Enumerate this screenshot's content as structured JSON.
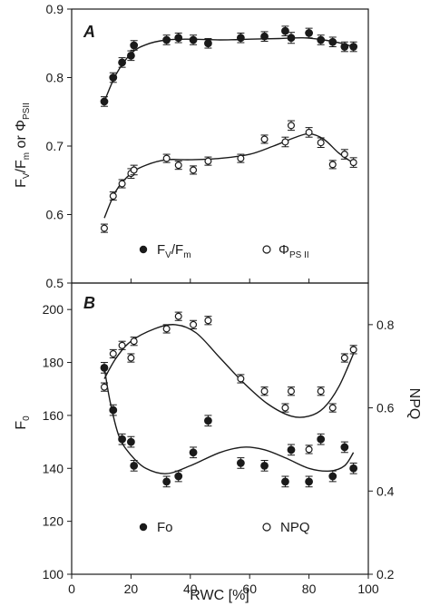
{
  "chart_data": [
    {
      "panel": "A",
      "type": "scatter",
      "xlim": [
        0,
        100
      ],
      "ylim": [
        0.5,
        0.9
      ],
      "x_ticks": [
        "0",
        "20",
        "40",
        "60",
        "80",
        "100"
      ],
      "y_ticks": [
        "0.5",
        "0.6",
        "0.7",
        "0.8",
        "0.9"
      ],
      "y_tick_values": [
        0.5,
        0.6,
        0.7,
        0.8,
        0.9
      ],
      "ylabel": "FV/Fm or ΦPSII",
      "legend_position": "bottom",
      "series": [
        {
          "name": "FV/Fm",
          "marker": "filled-circle",
          "x": [
            11,
            14,
            17,
            20,
            21,
            32,
            36,
            41,
            46,
            57,
            65,
            72,
            74,
            80,
            84,
            88,
            92,
            95
          ],
          "y": [
            0.765,
            0.8,
            0.822,
            0.832,
            0.847,
            0.855,
            0.858,
            0.855,
            0.85,
            0.858,
            0.86,
            0.868,
            0.858,
            0.865,
            0.855,
            0.852,
            0.845,
            0.845
          ],
          "err": [
            0.007,
            0.007,
            0.007,
            0.007,
            0.007,
            0.007,
            0.007,
            0.007,
            0.007,
            0.007,
            0.007,
            0.007,
            0.008,
            0.007,
            0.007,
            0.007,
            0.007,
            0.007
          ],
          "fit": [
            [
              11,
              0.765
            ],
            [
              15,
              0.805
            ],
            [
              20,
              0.835
            ],
            [
              25,
              0.848
            ],
            [
              32,
              0.855
            ],
            [
              40,
              0.856
            ],
            [
              50,
              0.855
            ],
            [
              60,
              0.856
            ],
            [
              70,
              0.857
            ],
            [
              78,
              0.858
            ],
            [
              85,
              0.855
            ],
            [
              91,
              0.85
            ],
            [
              95,
              0.845
            ]
          ]
        },
        {
          "name": "ΦPSII",
          "marker": "open-circle",
          "x": [
            11,
            14,
            17,
            20,
            21,
            32,
            36,
            41,
            46,
            57,
            65,
            72,
            74,
            80,
            84,
            88,
            92,
            95
          ],
          "y": [
            0.58,
            0.627,
            0.645,
            0.66,
            0.665,
            0.682,
            0.672,
            0.665,
            0.678,
            0.682,
            0.71,
            0.706,
            0.73,
            0.72,
            0.705,
            0.673,
            0.688,
            0.676
          ],
          "err": [
            0.006,
            0.006,
            0.006,
            0.007,
            0.007,
            0.006,
            0.006,
            0.006,
            0.006,
            0.006,
            0.006,
            0.007,
            0.007,
            0.007,
            0.007,
            0.006,
            0.007,
            0.007
          ],
          "fit": [
            [
              11,
              0.595
            ],
            [
              15,
              0.635
            ],
            [
              20,
              0.66
            ],
            [
              25,
              0.672
            ],
            [
              32,
              0.68
            ],
            [
              40,
              0.68
            ],
            [
              50,
              0.682
            ],
            [
              60,
              0.688
            ],
            [
              68,
              0.7
            ],
            [
              75,
              0.712
            ],
            [
              80,
              0.718
            ],
            [
              85,
              0.71
            ],
            [
              90,
              0.69
            ],
            [
              95,
              0.675
            ]
          ]
        }
      ]
    },
    {
      "panel": "B",
      "type": "scatter",
      "xlim": [
        0,
        100
      ],
      "xlabel": "RWC [%]",
      "x_ticks": [
        "0",
        "20",
        "40",
        "60",
        "80",
        "100"
      ],
      "x_tick_values": [
        0,
        20,
        40,
        60,
        80,
        100
      ],
      "ylabel": "F0",
      "ylim": [
        100,
        210
      ],
      "y_ticks": [
        "100",
        "120",
        "140",
        "160",
        "180",
        "200"
      ],
      "y_tick_values": [
        100,
        120,
        140,
        160,
        180,
        200
      ],
      "y2label": "NPQ",
      "y2lim": [
        0.2,
        0.9
      ],
      "y2_ticks": [
        "0.2",
        "0.4",
        "0.6",
        "0.8"
      ],
      "y2_tick_values": [
        0.2,
        0.4,
        0.6,
        0.8
      ],
      "legend_position": "bottom",
      "series": [
        {
          "name": "Fo",
          "marker": "filled-circle",
          "axis": "left",
          "x": [
            11,
            14,
            17,
            20,
            21,
            32,
            36,
            41,
            46,
            57,
            65,
            72,
            74,
            80,
            84,
            88,
            92,
            95
          ],
          "y": [
            178,
            162,
            151,
            150,
            141,
            135,
            137,
            146,
            158,
            142,
            141,
            135,
            147,
            135,
            151,
            137,
            148,
            140
          ],
          "err": [
            2,
            2,
            2,
            2,
            2,
            2,
            2,
            2,
            2,
            2,
            2,
            2,
            2,
            2,
            2,
            2,
            2,
            2
          ],
          "fit": [
            [
              11,
              178
            ],
            [
              13,
              165
            ],
            [
              16,
              152
            ],
            [
              20,
              145
            ],
            [
              25,
              140
            ],
            [
              32,
              138
            ],
            [
              40,
              141
            ],
            [
              50,
              146
            ],
            [
              58,
              148
            ],
            [
              65,
              147
            ],
            [
              72,
              144
            ],
            [
              80,
              140
            ],
            [
              87,
              139
            ],
            [
              92,
              141
            ],
            [
              95,
              146
            ]
          ]
        },
        {
          "name": "NPQ",
          "marker": "open-circle",
          "axis": "right",
          "x": [
            11,
            14,
            17,
            20,
            21,
            32,
            36,
            41,
            46,
            57,
            65,
            72,
            74,
            80,
            84,
            88,
            92,
            95
          ],
          "y": [
            0.65,
            0.73,
            0.75,
            0.72,
            0.76,
            0.79,
            0.82,
            0.8,
            0.81,
            0.67,
            0.64,
            0.6,
            0.64,
            0.5,
            0.64,
            0.6,
            0.72,
            0.74
          ],
          "err": [
            0.01,
            0.01,
            0.01,
            0.01,
            0.01,
            0.01,
            0.01,
            0.01,
            0.01,
            0.01,
            0.01,
            0.01,
            0.01,
            0.01,
            0.01,
            0.01,
            0.01,
            0.01
          ],
          "fit": [
            [
              11,
              0.67
            ],
            [
              15,
              0.72
            ],
            [
              20,
              0.76
            ],
            [
              28,
              0.79
            ],
            [
              35,
              0.8
            ],
            [
              42,
              0.78
            ],
            [
              50,
              0.72
            ],
            [
              58,
              0.66
            ],
            [
              66,
              0.61
            ],
            [
              74,
              0.58
            ],
            [
              80,
              0.58
            ],
            [
              85,
              0.6
            ],
            [
              90,
              0.65
            ],
            [
              95,
              0.73
            ]
          ]
        }
      ]
    }
  ]
}
